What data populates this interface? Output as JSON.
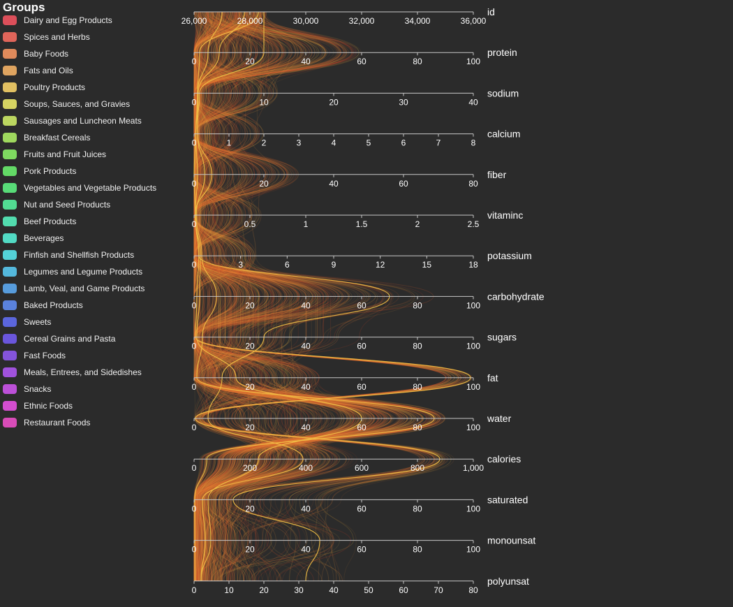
{
  "legend": {
    "title": "Groups",
    "groups": [
      {
        "label": "Dairy and Egg Products",
        "color": "#dc4f5a"
      },
      {
        "label": "Spices and Herbs",
        "color": "#e0655a"
      },
      {
        "label": "Baby Foods",
        "color": "#e08a5b"
      },
      {
        "label": "Fats and Oils",
        "color": "#dfa460"
      },
      {
        "label": "Poultry Products",
        "color": "#e1c062"
      },
      {
        "label": "Soups, Sauces, and Gravies",
        "color": "#d6d462"
      },
      {
        "label": "Sausages and Luncheon Meats",
        "color": "#bcd660"
      },
      {
        "label": "Breakfast Cereals",
        "color": "#9fd85e"
      },
      {
        "label": "Fruits and Fruit Juices",
        "color": "#7fda60"
      },
      {
        "label": "Pork Products",
        "color": "#63da66"
      },
      {
        "label": "Vegetables and Vegetable Products",
        "color": "#58dc78"
      },
      {
        "label": "Nut and Seed Products",
        "color": "#52dc92"
      },
      {
        "label": "Beef Products",
        "color": "#52dcae"
      },
      {
        "label": "Beverages",
        "color": "#52dac4"
      },
      {
        "label": "Finfish and Shellfish Products",
        "color": "#54d2d8"
      },
      {
        "label": "Legumes and Legume Products",
        "color": "#54b8dc"
      },
      {
        "label": "Lamb, Veal, and Game Products",
        "color": "#579cdc"
      },
      {
        "label": "Baked Products",
        "color": "#5a82dc"
      },
      {
        "label": "Sweets",
        "color": "#5b66dc"
      },
      {
        "label": "Cereal Grains and Pasta",
        "color": "#6a56dc"
      },
      {
        "label": "Fast Foods",
        "color": "#8454dc"
      },
      {
        "label": "Meals, Entrees, and Sidedishes",
        "color": "#a052dc"
      },
      {
        "label": "Snacks",
        "color": "#bc50d8"
      },
      {
        "label": "Ethnic Foods",
        "color": "#d44ed0"
      },
      {
        "label": "Restaurant Foods",
        "color": "#d84cb8"
      }
    ]
  },
  "chart_data": {
    "type": "parallel-coordinates",
    "orientation": "horizontal axes stacked vertically",
    "axes": [
      {
        "name": "id",
        "range": [
          26000,
          36000
        ],
        "ticks": [
          "26,000",
          "28,000",
          "30,000",
          "32,000",
          "34,000",
          "36,000"
        ]
      },
      {
        "name": "protein",
        "range": [
          0,
          100
        ],
        "ticks": [
          "0",
          "20",
          "40",
          "60",
          "80",
          "100"
        ]
      },
      {
        "name": "sodium",
        "range": [
          0,
          40
        ],
        "ticks": [
          "0",
          "10",
          "20",
          "30",
          "40"
        ]
      },
      {
        "name": "calcium",
        "range": [
          0,
          8
        ],
        "ticks": [
          "0",
          "1",
          "2",
          "3",
          "4",
          "5",
          "6",
          "7",
          "8"
        ]
      },
      {
        "name": "fiber",
        "range": [
          0,
          80
        ],
        "ticks": [
          "0",
          "20",
          "40",
          "60",
          "80"
        ]
      },
      {
        "name": "vitaminc",
        "range": [
          0,
          2.5
        ],
        "ticks": [
          "0",
          "0.5",
          "1",
          "1.5",
          "2",
          "2.5"
        ]
      },
      {
        "name": "potassium",
        "range": [
          0,
          18
        ],
        "ticks": [
          "0",
          "3",
          "6",
          "9",
          "12",
          "15",
          "18"
        ]
      },
      {
        "name": "carbohydrate",
        "range": [
          0,
          100
        ],
        "ticks": [
          "0",
          "20",
          "40",
          "60",
          "80",
          "100"
        ]
      },
      {
        "name": "sugars",
        "range": [
          0,
          100
        ],
        "ticks": [
          "0",
          "20",
          "40",
          "60",
          "80",
          "100"
        ]
      },
      {
        "name": "fat",
        "range": [
          0,
          100
        ],
        "ticks": [
          "0",
          "20",
          "40",
          "60",
          "80",
          "100"
        ]
      },
      {
        "name": "water",
        "range": [
          0,
          100
        ],
        "ticks": [
          "0",
          "20",
          "40",
          "60",
          "80",
          "100"
        ]
      },
      {
        "name": "calories",
        "range": [
          0,
          1000
        ],
        "ticks": [
          "0",
          "200",
          "400",
          "600",
          "800",
          "1,000"
        ]
      },
      {
        "name": "saturated",
        "range": [
          0,
          100
        ],
        "ticks": [
          "0",
          "20",
          "40",
          "60",
          "80",
          "100"
        ]
      },
      {
        "name": "monounsat",
        "range": [
          0,
          100
        ],
        "ticks": [
          "0",
          "20",
          "40",
          "60",
          "80",
          "100"
        ]
      },
      {
        "name": "polyunsat",
        "range": [
          0,
          80
        ],
        "ticks": [
          "0",
          "10",
          "20",
          "30",
          "40",
          "50",
          "60",
          "70",
          "80"
        ]
      }
    ],
    "line_color_range": [
      "#d23c2a",
      "#f2c046"
    ],
    "profiles_approx": [
      {
        "id": 28300,
        "protein": 2,
        "sodium": 0.5,
        "calcium": 0.05,
        "fiber": 1,
        "vitaminc": 0.01,
        "potassium": 0.3,
        "carbohydrate": 1,
        "sugars": 0.5,
        "fat": 99,
        "water": 0.5,
        "calories": 880,
        "saturated": 14,
        "monounsat": 45,
        "polyunsat": 32
      },
      {
        "id": 27000,
        "protein": 5,
        "sodium": 0.5,
        "calcium": 0.1,
        "fiber": 3,
        "vitaminc": 0.02,
        "potassium": 0.5,
        "carbohydrate": 8,
        "sugars": 3,
        "fat": 1,
        "water": 86,
        "calories": 45,
        "saturated": 0.2,
        "monounsat": 0.3,
        "polyunsat": 0.3
      },
      {
        "id": 28500,
        "protein": 25,
        "sodium": 0.8,
        "calcium": 0.05,
        "fiber": 0,
        "vitaminc": 0.01,
        "potassium": 0.4,
        "carbohydrate": 2,
        "sugars": 1,
        "fat": 15,
        "water": 60,
        "calories": 230,
        "saturated": 5,
        "monounsat": 6,
        "polyunsat": 2
      },
      {
        "id": 27800,
        "protein": 9,
        "sodium": 0.6,
        "calcium": 0.1,
        "fiber": 5,
        "vitaminc": 0.01,
        "potassium": 0.3,
        "carbohydrate": 70,
        "sugars": 25,
        "fat": 10,
        "water": 5,
        "calories": 390,
        "saturated": 3,
        "monounsat": 4,
        "polyunsat": 2
      }
    ]
  }
}
